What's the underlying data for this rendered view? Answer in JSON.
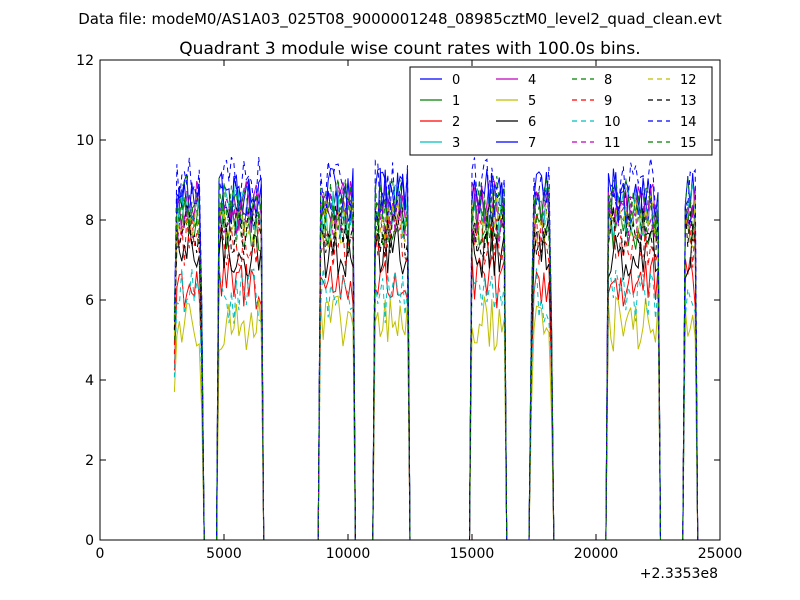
{
  "header": {
    "data_file": "Data file: modeM0/AS1A03_025T08_9000001248_08985cztM0_level2_quad_clean.evt"
  },
  "chart_data": {
    "type": "line",
    "title": "Quadrant 3 module wise count rates with 100.0s bins.",
    "xlabel": "",
    "ylabel": "",
    "xlim": [
      0,
      25000
    ],
    "ylim": [
      0,
      12
    ],
    "x_ticks": [
      0,
      5000,
      10000,
      15000,
      20000,
      25000
    ],
    "y_ticks": [
      0,
      2,
      4,
      6,
      8,
      10,
      12
    ],
    "x_tick_labels": [
      "0",
      "5000",
      "10000",
      "15000",
      "20000",
      "25000"
    ],
    "y_tick_labels": [
      "0",
      "2",
      "4",
      "6",
      "8",
      "10",
      "12"
    ],
    "x_offset_label": "+2.3353e8",
    "legend_position": "top-right",
    "legend_columns": 4,
    "bin_seconds": 100,
    "gti_segments": [
      {
        "start": 3000,
        "end": 4100
      },
      {
        "start": 4750,
        "end": 6550
      },
      {
        "start": 8850,
        "end": 10250
      },
      {
        "start": 11050,
        "end": 12450
      },
      {
        "start": 14950,
        "end": 16350
      },
      {
        "start": 17400,
        "end": 18200
      },
      {
        "start": 20450,
        "end": 22550
      },
      {
        "start": 23550,
        "end": 24050
      }
    ],
    "gap_baseline": 0,
    "series": [
      {
        "name": "0",
        "color": "#0000ff",
        "dash": "solid",
        "mean_rate": 8.5
      },
      {
        "name": "1",
        "color": "#008000",
        "dash": "solid",
        "mean_rate": 7.9
      },
      {
        "name": "2",
        "color": "#ff0000",
        "dash": "solid",
        "mean_rate": 6.4
      },
      {
        "name": "3",
        "color": "#00bfbf",
        "dash": "solid",
        "mean_rate": 8.2
      },
      {
        "name": "4",
        "color": "#bf00bf",
        "dash": "solid",
        "mean_rate": 8.3
      },
      {
        "name": "5",
        "color": "#bfbf00",
        "dash": "solid",
        "mean_rate": 5.4
      },
      {
        "name": "6",
        "color": "#000000",
        "dash": "solid",
        "mean_rate": 7.2
      },
      {
        "name": "7",
        "color": "#0000ff",
        "dash": "solid",
        "mean_rate": 8.6
      },
      {
        "name": "8",
        "color": "#008000",
        "dash": "dashed",
        "mean_rate": 8.0
      },
      {
        "name": "9",
        "color": "#ff0000",
        "dash": "dashed",
        "mean_rate": 7.5
      },
      {
        "name": "10",
        "color": "#00bfbf",
        "dash": "dashed",
        "mean_rate": 6.1
      },
      {
        "name": "11",
        "color": "#bf00bf",
        "dash": "dashed",
        "mean_rate": 8.1
      },
      {
        "name": "12",
        "color": "#bfbf00",
        "dash": "dashed",
        "mean_rate": 8.0
      },
      {
        "name": "13",
        "color": "#000000",
        "dash": "dashed",
        "mean_rate": 7.7
      },
      {
        "name": "14",
        "color": "#0000ff",
        "dash": "dashed",
        "mean_rate": 8.9
      },
      {
        "name": "15",
        "color": "#008000",
        "dash": "dashed",
        "mean_rate": 8.4
      }
    ]
  }
}
